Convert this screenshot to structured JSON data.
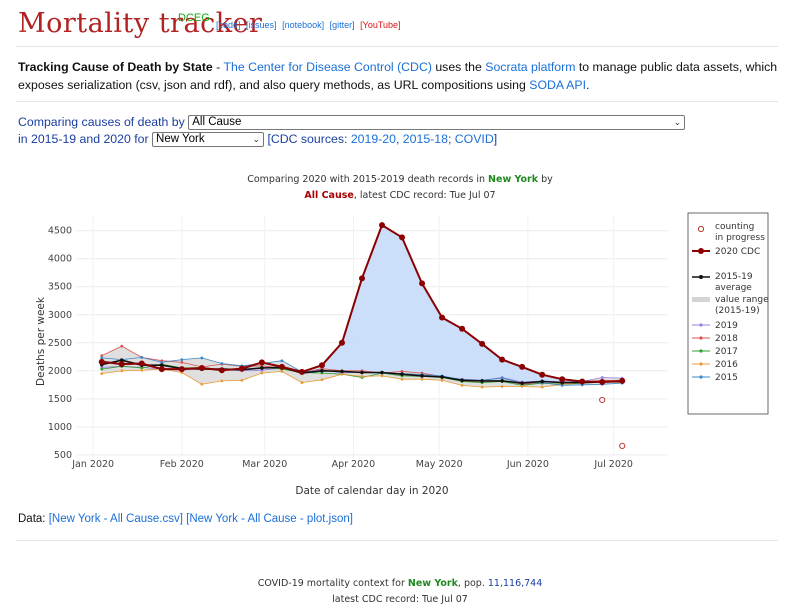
{
  "header": {
    "title": "Mortality tracker",
    "badge": "DCEG",
    "links": [
      "[code]",
      "[issues]",
      "[notebook]",
      "[gitter]",
      "[YouTube]"
    ]
  },
  "intro": {
    "heading": "Tracking Cause of Death by State",
    "sep": " - ",
    "cdc_link": "The Center for Disease Control (CDC)",
    "text1": " uses the ",
    "socrata_link": "Socrata platform",
    "text2": " to manage public data assets, which exposes serialization (csv, json and rdf), and also query methods, as URL compositions using ",
    "soda_link": "SODA API",
    "text3": "."
  },
  "controls": {
    "label1": "Comparing causes of death by",
    "cause_value": "All Cause",
    "label2": "in 2015-19 and 2020 for",
    "state_value": "New York",
    "sources_prefix": "[CDC sources:",
    "sources": [
      "2019-20",
      "2015-18",
      "COVID"
    ],
    "sources_suffix": "]"
  },
  "chart_title": {
    "line1_prefix": "Comparing 2020 with 2015-2019 death records in",
    "state": "New York",
    "line1_suffix": "by",
    "cause": "All Cause",
    "line2_suffix": ", latest CDC record: Tue Jul 07"
  },
  "chart_data": {
    "type": "line",
    "xlabel": "Date of calendar day in 2020",
    "ylabel": "Deaths per week",
    "xlim": [
      "2019-12-26",
      "2020-07-20"
    ],
    "ylim": [
      480,
      4780
    ],
    "xticks": [
      {
        "date": "2020-01-01",
        "label": "Jan 2020"
      },
      {
        "date": "2020-02-01",
        "label": "Feb 2020"
      },
      {
        "date": "2020-03-01",
        "label": "Mar 2020"
      },
      {
        "date": "2020-04-01",
        "label": "Apr 2020"
      },
      {
        "date": "2020-05-01",
        "label": "May 2020"
      },
      {
        "date": "2020-06-01",
        "label": "Jun 2020"
      },
      {
        "date": "2020-07-01",
        "label": "Jul 2020"
      }
    ],
    "yticks": [
      500,
      1000,
      1500,
      2000,
      2500,
      3000,
      3500,
      4000,
      4500
    ],
    "dates": [
      "2020-01-04",
      "2020-01-11",
      "2020-01-18",
      "2020-01-25",
      "2020-02-01",
      "2020-02-08",
      "2020-02-15",
      "2020-02-22",
      "2020-02-29",
      "2020-03-07",
      "2020-03-14",
      "2020-03-21",
      "2020-03-28",
      "2020-04-04",
      "2020-04-11",
      "2020-04-18",
      "2020-04-25",
      "2020-05-02",
      "2020-05-09",
      "2020-05-16",
      "2020-05-23",
      "2020-05-30",
      "2020-06-06",
      "2020-06-13",
      "2020-06-20",
      "2020-06-27",
      "2020-07-04"
    ],
    "series_2020": {
      "name": "2020 CDC",
      "color": "#8b0000",
      "values": [
        2160,
        2120,
        2130,
        2030,
        2030,
        2050,
        2010,
        2040,
        2150,
        2070,
        1980,
        2100,
        2500,
        3650,
        4600,
        4380,
        3560,
        2950,
        2750,
        2480,
        2200,
        2070,
        1930,
        1850,
        1810,
        1800,
        1820
      ]
    },
    "in_progress": {
      "name": "counting in progress",
      "color": "#c0392b",
      "points": [
        {
          "date": "2020-06-27",
          "value": 1480
        },
        {
          "date": "2020-07-04",
          "value": 660
        }
      ]
    },
    "average": {
      "name": "2015-19 average",
      "color": "#111111",
      "values": [
        2110,
        2190,
        2100,
        2100,
        2040,
        2030,
        2030,
        2020,
        2050,
        2060,
        1960,
        2000,
        1990,
        1970,
        1970,
        1940,
        1910,
        1890,
        1830,
        1820,
        1820,
        1780,
        1810,
        1790,
        1790,
        1800,
        1810
      ]
    },
    "range_label": "value range (2015-19)",
    "range_color": "#d4d4d4",
    "covid_fill": "#c6dcfa",
    "years": [
      {
        "name": "2019",
        "color": "#9b7fe0",
        "values": [
          2060,
          2080,
          2060,
          2030,
          2010,
          2040,
          2020,
          2000,
          2010,
          2050,
          1980,
          2020,
          1960,
          1980,
          1970,
          1930,
          1910,
          1890,
          1850,
          1830,
          1880,
          1800,
          1820,
          1800,
          1810,
          1880,
          1870
        ]
      },
      {
        "name": "2018",
        "color": "#d9534f",
        "values": [
          2270,
          2440,
          2240,
          2180,
          2150,
          2070,
          2120,
          2080,
          2090,
          2050,
          1960,
          2040,
          2000,
          2000,
          1960,
          1990,
          1960,
          1900,
          1820,
          1790,
          1830,
          1760,
          1780,
          1760,
          1800,
          1830,
          1820
        ]
      },
      {
        "name": "2017",
        "color": "#2ca02c",
        "values": [
          2030,
          2080,
          2050,
          2120,
          2050,
          2060,
          2020,
          2010,
          2060,
          2030,
          1970,
          1960,
          1940,
          1880,
          1960,
          1910,
          1900,
          1880,
          1810,
          1790,
          1810,
          1740,
          1780,
          1760,
          1780,
          1800,
          1800
        ]
      },
      {
        "name": "2016",
        "color": "#e89c3a",
        "values": [
          1950,
          2000,
          2010,
          2030,
          1970,
          1760,
          1820,
          1830,
          1960,
          1990,
          1790,
          1840,
          1940,
          1900,
          1910,
          1850,
          1850,
          1830,
          1740,
          1710,
          1720,
          1720,
          1710,
          1760,
          1790,
          1800,
          1790
        ]
      },
      {
        "name": "2015",
        "color": "#3b89c9",
        "values": [
          2230,
          2200,
          2240,
          2150,
          2200,
          2230,
          2130,
          2090,
          2130,
          2180,
          1980,
          2000,
          1990,
          1970,
          1960,
          1950,
          1930,
          1910,
          1840,
          1830,
          1870,
          1780,
          1790,
          1740,
          1750,
          1760,
          1780
        ]
      }
    ]
  },
  "data_links": {
    "prefix": "Data: ",
    "csv": "[New York - All Cause.csv]",
    "json": "[New York - All Cause - plot.json]"
  },
  "footer": {
    "line1_prefix": "COVID-19 mortality context for",
    "state": "New York",
    "pop_label": ", pop.",
    "pop": "11,116,744",
    "line2": "latest CDC record: Tue Jul 07"
  }
}
